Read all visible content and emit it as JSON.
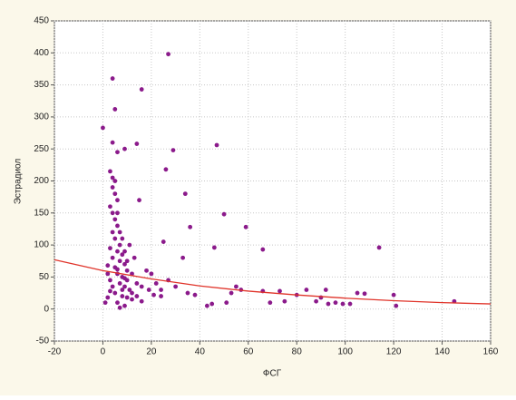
{
  "chart_data": {
    "type": "scatter",
    "xlabel": "ФСГ",
    "ylabel": "Эстрадиол",
    "xlim": [
      -20,
      160
    ],
    "xticks": [
      -20,
      0,
      20,
      40,
      60,
      80,
      100,
      120,
      140,
      160
    ],
    "ylim": [
      -50,
      450
    ],
    "yticks": [
      -50,
      0,
      50,
      100,
      150,
      200,
      250,
      300,
      350,
      400,
      450
    ],
    "grid": true,
    "series": [
      {
        "color": "#8b1a8b",
        "x": [
          27,
          4,
          16,
          5,
          0,
          29,
          47,
          14,
          4,
          9,
          6,
          26,
          34,
          15,
          50,
          36,
          59,
          66,
          46,
          114,
          25,
          33,
          3,
          4,
          5,
          4,
          5,
          6,
          3,
          4,
          5,
          6,
          4,
          5,
          7,
          3,
          6,
          8,
          4,
          7,
          9,
          5,
          10,
          6,
          8,
          3,
          7,
          9,
          11,
          5,
          8,
          12,
          6,
          9,
          7,
          10,
          12,
          14,
          2,
          13,
          11,
          16,
          18,
          20,
          22,
          24,
          27,
          30,
          35,
          38,
          43,
          45,
          51,
          53,
          55,
          57,
          66,
          69,
          73,
          75,
          80,
          84,
          88,
          90,
          92,
          93,
          96,
          99,
          102,
          105,
          108,
          120,
          121,
          145,
          6,
          7,
          8,
          9,
          10,
          4,
          3,
          2,
          1,
          12,
          14,
          16,
          19,
          21,
          24,
          2,
          8,
          10,
          6,
          9
        ],
        "values": [
          398,
          360,
          343,
          312,
          283,
          248,
          256,
          258,
          260,
          250,
          245,
          218,
          180,
          170,
          148,
          128,
          128,
          93,
          96,
          96,
          105,
          80,
          215,
          205,
          200,
          190,
          180,
          170,
          160,
          150,
          140,
          130,
          120,
          110,
          100,
          95,
          90,
          85,
          80,
          75,
          70,
          65,
          60,
          55,
          50,
          45,
          40,
          35,
          30,
          25,
          20,
          15,
          10,
          5,
          2,
          45,
          55,
          40,
          68,
          80,
          100,
          35,
          60,
          55,
          40,
          30,
          45,
          35,
          25,
          22,
          5,
          8,
          10,
          25,
          35,
          30,
          28,
          10,
          28,
          12,
          22,
          30,
          12,
          18,
          30,
          8,
          10,
          8,
          8,
          25,
          24,
          22,
          5,
          12,
          150,
          120,
          110,
          90,
          75,
          35,
          28,
          18,
          10,
          25,
          20,
          12,
          30,
          22,
          20,
          55,
          30,
          18,
          62,
          48
        ]
      },
      {
        "type": "line",
        "color": "#e0342a",
        "x": [
          -20,
          0,
          20,
          40,
          60,
          80,
          100,
          120,
          140,
          160
        ],
        "values": [
          77,
          60,
          47,
          36,
          28,
          22,
          17,
          13,
          10,
          8
        ]
      }
    ]
  }
}
